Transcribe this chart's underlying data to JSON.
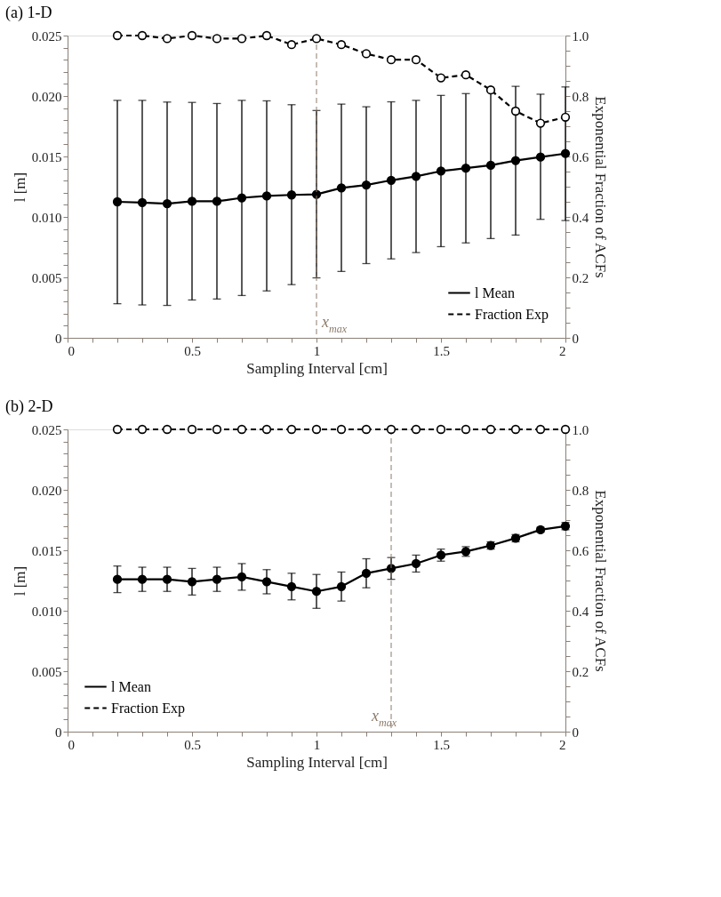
{
  "chart_data": [
    {
      "type": "line",
      "title": "(a) 1-D",
      "xlabel": "Sampling Interval [cm]",
      "ylabel": "l [m]",
      "y2label": "Exponential Fraction of ACFs",
      "x": [
        0.2,
        0.3,
        0.4,
        0.5,
        0.6,
        0.7,
        0.8,
        0.9,
        1.0,
        1.1,
        1.2,
        1.3,
        1.4,
        1.5,
        1.6,
        1.7,
        1.8,
        1.9,
        2.0
      ],
      "series": [
        {
          "name": "l Mean",
          "color": "#000000",
          "marker": "circle",
          "line_style": "solid",
          "values": [
            0.01125,
            0.01119,
            0.0111,
            0.01129,
            0.01129,
            0.01158,
            0.01173,
            0.01182,
            0.01187,
            0.0124,
            0.01264,
            0.01303,
            0.01336,
            0.01379,
            0.01403,
            0.01427,
            0.01466,
            0.01495,
            0.01524
          ],
          "errors": [
            [
              0.00282,
              0.01964
            ],
            [
              0.00272,
              0.01964
            ],
            [
              0.00268,
              0.0195
            ],
            [
              0.00313,
              0.01947
            ],
            [
              0.00321,
              0.01938
            ],
            [
              0.0035,
              0.01964
            ],
            [
              0.00388,
              0.0196
            ],
            [
              0.0044,
              0.01928
            ],
            [
              0.00496,
              0.0188
            ],
            [
              0.00549,
              0.01933
            ],
            [
              0.00614,
              0.01911
            ],
            [
              0.00653,
              0.01952
            ],
            [
              0.00705,
              0.01964
            ],
            [
              0.00754,
              0.02005
            ],
            [
              0.00785,
              0.0202
            ],
            [
              0.00821,
              0.02044
            ],
            [
              0.0085,
              0.0208
            ],
            [
              0.0098,
              0.02015
            ],
            [
              0.0097,
              0.02075
            ]
          ]
        },
        {
          "name": "Fraction Exp",
          "color": "#000000",
          "marker": "circle",
          "line_style": "dashed",
          "axis": "y2",
          "values": [
            1.0,
            1.0,
            0.99,
            1.0,
            0.99,
            0.99,
            1.0,
            0.97,
            0.99,
            0.97,
            0.94,
            0.92,
            0.92,
            0.86,
            0.87,
            0.82,
            0.75,
            0.71,
            0.73
          ]
        }
      ],
      "xlim": [
        0,
        2
      ],
      "ylim": [
        0,
        0.025
      ],
      "y2lim": [
        0,
        1
      ],
      "xticks": [
        0,
        {
          "value": 0.1,
          "label": null
        },
        {
          "value": 0.2,
          "label": null
        },
        {
          "value": 0.3,
          "label": null
        },
        {
          "value": 0.4,
          "label": null
        },
        0.5,
        {
          "value": 0.6,
          "label": null
        },
        {
          "value": 0.7,
          "label": null
        },
        {
          "value": 0.8,
          "label": null
        },
        {
          "value": 0.9,
          "label": null
        },
        1,
        {
          "value": 1.1,
          "label": null
        },
        {
          "value": 1.2,
          "label": null
        },
        {
          "value": 1.3,
          "label": null
        },
        {
          "value": 1.4,
          "label": null
        },
        1.5,
        {
          "value": 1.6,
          "label": null
        },
        {
          "value": 1.7,
          "label": null
        },
        {
          "value": 1.8,
          "label": null
        },
        {
          "value": 1.9,
          "label": null
        },
        2
      ],
      "yticks": [
        0,
        {
          "value": 0.001,
          "label": null
        },
        {
          "value": 0.002,
          "label": null
        },
        {
          "value": 0.003,
          "label": null
        },
        {
          "value": 0.004,
          "label": null
        },
        0.005,
        {
          "value": 0.006,
          "label": null
        },
        {
          "value": 0.007,
          "label": null
        },
        {
          "value": 0.008,
          "label": null
        },
        {
          "value": 0.009,
          "label": null
        },
        {
          "value": 0.01,
          "label": "0.010"
        },
        {
          "value": 0.011,
          "label": null
        },
        {
          "value": 0.012,
          "label": null
        },
        {
          "value": 0.013,
          "label": null
        },
        {
          "value": 0.014,
          "label": null
        },
        0.015,
        {
          "value": 0.016,
          "label": null
        },
        {
          "value": 0.017,
          "label": null
        },
        {
          "value": 0.018,
          "label": null
        },
        {
          "value": 0.019,
          "label": null
        },
        {
          "value": 0.02,
          "label": "0.020"
        },
        {
          "value": 0.021,
          "label": null
        },
        {
          "value": 0.022,
          "label": null
        },
        {
          "value": 0.023,
          "label": null
        },
        {
          "value": 0.024,
          "label": null
        },
        0.025
      ],
      "y2ticks": [
        0,
        {
          "value": 0.05,
          "label": null
        },
        {
          "value": 0.1,
          "label": null
        },
        {
          "value": 0.15,
          "label": null
        },
        0.2,
        {
          "value": 0.25,
          "label": null
        },
        {
          "value": 0.3,
          "label": null
        },
        {
          "value": 0.35,
          "label": null
        },
        0.4,
        {
          "value": 0.45,
          "label": null
        },
        {
          "value": 0.5,
          "label": null
        },
        {
          "value": 0.55,
          "label": null
        },
        0.6,
        {
          "value": 0.65,
          "label": null
        },
        {
          "value": 0.7,
          "label": null
        },
        {
          "value": 0.75,
          "label": null
        },
        0.8,
        {
          "value": 0.85,
          "label": null
        },
        {
          "value": 0.9,
          "label": null
        },
        {
          "value": 0.95,
          "label": null
        },
        {
          "value": 1.0,
          "label": "1.0"
        }
      ],
      "ref_lines": [
        {
          "axis": "x",
          "value": 1.0,
          "label": "x$_{max}$",
          "color": "#8c7b6b",
          "line_style": "dashed"
        }
      ],
      "legend": "bottom right",
      "grid": false
    },
    {
      "type": "line",
      "title": "(b) 2-D",
      "xlabel": "Sampling Interval [cm]",
      "ylabel": "l [m]",
      "y2label": "Exponential Fraction of ACFs",
      "x": [
        0.2,
        0.3,
        0.4,
        0.5,
        0.6,
        0.7,
        0.8,
        0.9,
        1.0,
        1.1,
        1.2,
        1.3,
        1.4,
        1.5,
        1.6,
        1.7,
        1.8,
        1.9,
        2.0
      ],
      "series": [
        {
          "name": "l Mean",
          "color": "#000000",
          "marker": "circle",
          "line_style": "solid",
          "values": [
            0.0126,
            0.0126,
            0.0126,
            0.0124,
            0.0126,
            0.0128,
            0.0124,
            0.012,
            0.0116,
            0.012,
            0.0131,
            0.0135,
            0.0139,
            0.0146,
            0.0149,
            0.0154,
            0.016,
            0.0167,
            0.017
          ],
          "errors": [
            0.0011,
            0.001,
            0.001,
            0.0011,
            0.001,
            0.0011,
            0.001,
            0.0011,
            0.0014,
            0.0012,
            0.0012,
            0.0009,
            0.0007,
            0.0005,
            0.0004,
            0.0003,
            0.0003,
            0.0002,
            0.0003
          ]
        },
        {
          "name": "Fraction Exp",
          "color": "#000000",
          "marker": "circle",
          "line_style": "dashed",
          "axis": "y2",
          "values": [
            1.0,
            1.0,
            1.0,
            1.0,
            1.0,
            1.0,
            1.0,
            1.0,
            1.0,
            1.0,
            1.0,
            1.0,
            1.0,
            1.0,
            1.0,
            1.0,
            1.0,
            1.0,
            1.0
          ]
        }
      ],
      "xlim": [
        0,
        2
      ],
      "ylim": [
        0,
        0.025
      ],
      "y2lim": [
        0,
        1
      ],
      "xticks": [
        0,
        {
          "value": 0.1,
          "label": null
        },
        {
          "value": 0.2,
          "label": null
        },
        {
          "value": 0.3,
          "label": null
        },
        {
          "value": 0.4,
          "label": null
        },
        0.5,
        {
          "value": 0.6,
          "label": null
        },
        {
          "value": 0.7,
          "label": null
        },
        {
          "value": 0.8,
          "label": null
        },
        {
          "value": 0.9,
          "label": null
        },
        1,
        {
          "value": 1.1,
          "label": null
        },
        {
          "value": 1.2,
          "label": null
        },
        {
          "value": 1.3,
          "label": null
        },
        {
          "value": 1.4,
          "label": null
        },
        1.5,
        {
          "value": 1.6,
          "label": null
        },
        {
          "value": 1.7,
          "label": null
        },
        {
          "value": 1.8,
          "label": null
        },
        {
          "value": 1.9,
          "label": null
        },
        2
      ],
      "yticks": [
        0,
        {
          "value": 0.001,
          "label": null
        },
        {
          "value": 0.002,
          "label": null
        },
        {
          "value": 0.003,
          "label": null
        },
        {
          "value": 0.004,
          "label": null
        },
        0.005,
        {
          "value": 0.006,
          "label": null
        },
        {
          "value": 0.007,
          "label": null
        },
        {
          "value": 0.008,
          "label": null
        },
        {
          "value": 0.009,
          "label": null
        },
        {
          "value": 0.01,
          "label": "0.010"
        },
        {
          "value": 0.011,
          "label": null
        },
        {
          "value": 0.012,
          "label": null
        },
        {
          "value": 0.013,
          "label": null
        },
        {
          "value": 0.014,
          "label": null
        },
        0.015,
        {
          "value": 0.016,
          "label": null
        },
        {
          "value": 0.017,
          "label": null
        },
        {
          "value": 0.018,
          "label": null
        },
        {
          "value": 0.019,
          "label": null
        },
        {
          "value": 0.02,
          "label": "0.020"
        },
        {
          "value": 0.021,
          "label": null
        },
        {
          "value": 0.022,
          "label": null
        },
        {
          "value": 0.023,
          "label": null
        },
        {
          "value": 0.024,
          "label": null
        },
        0.025
      ],
      "y2ticks": [
        0,
        {
          "value": 0.05,
          "label": null
        },
        {
          "value": 0.1,
          "label": null
        },
        {
          "value": 0.15,
          "label": null
        },
        0.2,
        {
          "value": 0.25,
          "label": null
        },
        {
          "value": 0.3,
          "label": null
        },
        {
          "value": 0.35,
          "label": null
        },
        0.4,
        {
          "value": 0.45,
          "label": null
        },
        {
          "value": 0.5,
          "label": null
        },
        {
          "value": 0.55,
          "label": null
        },
        0.6,
        {
          "value": 0.65,
          "label": null
        },
        {
          "value": 0.7,
          "label": null
        },
        {
          "value": 0.75,
          "label": null
        },
        0.8,
        {
          "value": 0.85,
          "label": null
        },
        {
          "value": 0.9,
          "label": null
        },
        {
          "value": 0.95,
          "label": null
        },
        {
          "value": 1.0,
          "label": "1.0"
        }
      ],
      "ref_lines": [
        {
          "axis": "x",
          "value": 1.3,
          "label": "x$_{max}$",
          "color": "#8c7b6b",
          "line_style": "dashed"
        }
      ],
      "legend": "bottom left",
      "grid": false
    }
  ]
}
